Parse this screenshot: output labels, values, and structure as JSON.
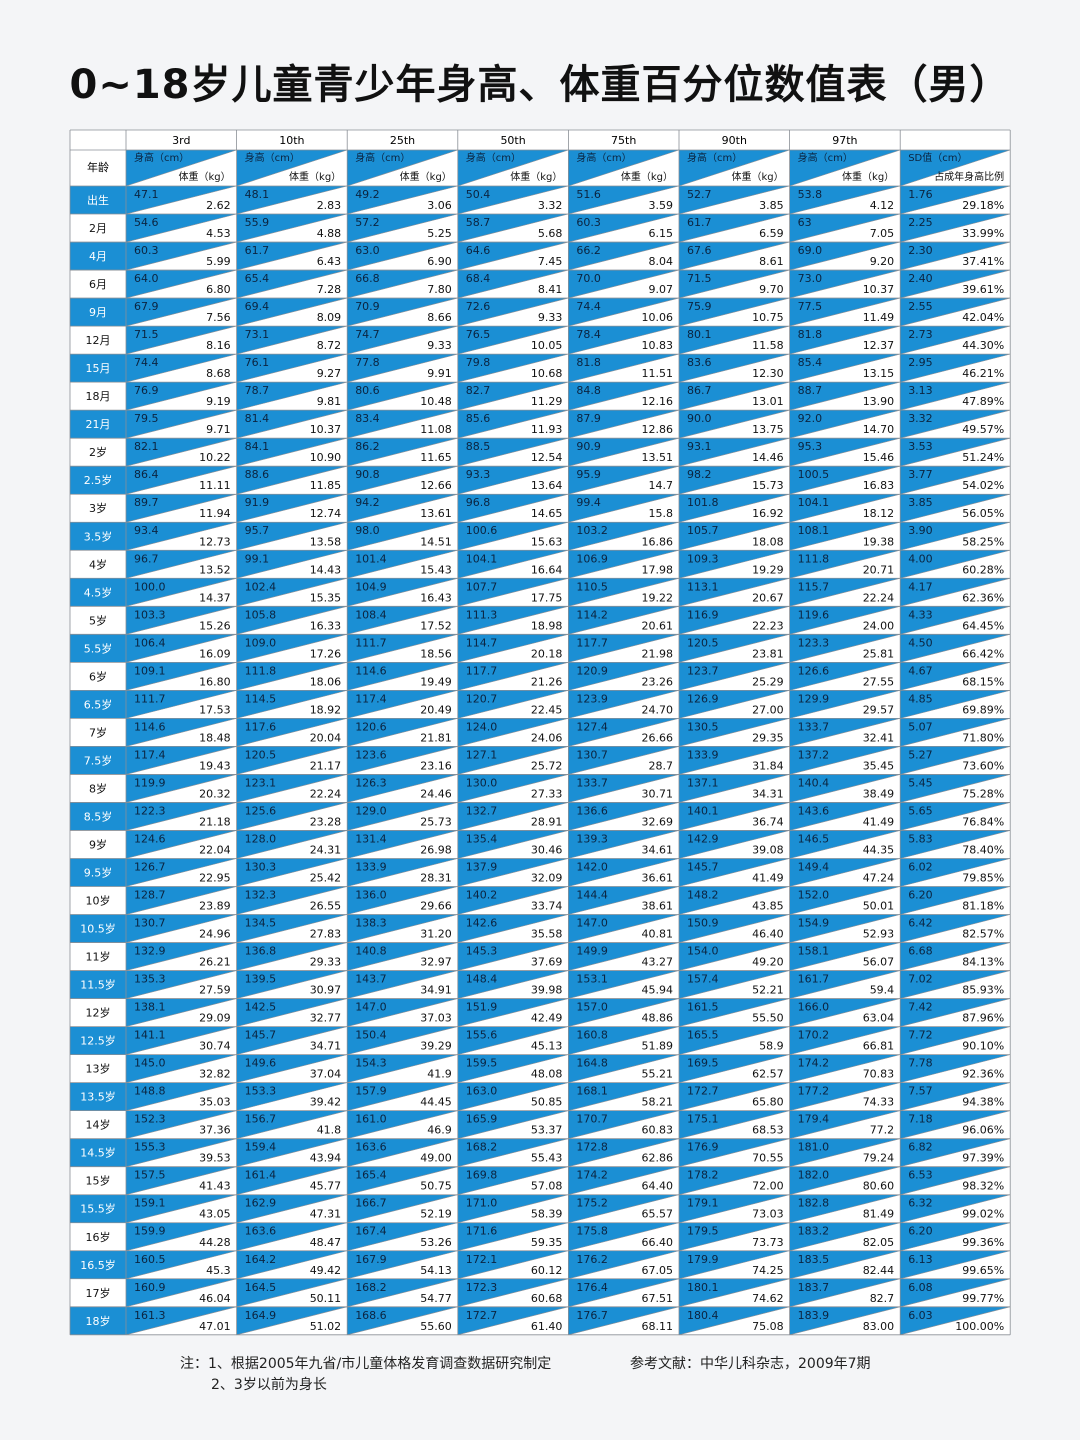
{
  "title": "0~18岁儿童青少年身高、体重百分位数值表（男）",
  "table": {
    "percentiles": [
      "3rd",
      "10th",
      "25th",
      "50th",
      "75th",
      "90th",
      "97th"
    ],
    "age_header": "年龄",
    "height_header": "身高（cm）",
    "weight_header": "体重（kg）",
    "sd_header": "SD值（cm）",
    "ratio_header": "占成年身高比例",
    "rows": [
      [
        "出生",
        "47.1",
        "2.62",
        "48.1",
        "2.83",
        "49.2",
        "3.06",
        "50.4",
        "3.32",
        "51.6",
        "3.59",
        "52.7",
        "3.85",
        "53.8",
        "4.12",
        "1.76",
        "29.18%"
      ],
      [
        "2月",
        "54.6",
        "4.53",
        "55.9",
        "4.88",
        "57.2",
        "5.25",
        "58.7",
        "5.68",
        "60.3",
        "6.15",
        "61.7",
        "6.59",
        "63",
        "7.05",
        "2.25",
        "33.99%"
      ],
      [
        "4月",
        "60.3",
        "5.99",
        "61.7",
        "6.43",
        "63.0",
        "6.90",
        "64.6",
        "7.45",
        "66.2",
        "8.04",
        "67.6",
        "8.61",
        "69.0",
        "9.20",
        "2.30",
        "37.41%"
      ],
      [
        "6月",
        "64.0",
        "6.80",
        "65.4",
        "7.28",
        "66.8",
        "7.80",
        "68.4",
        "8.41",
        "70.0",
        "9.07",
        "71.5",
        "9.70",
        "73.0",
        "10.37",
        "2.40",
        "39.61%"
      ],
      [
        "9月",
        "67.9",
        "7.56",
        "69.4",
        "8.09",
        "70.9",
        "8.66",
        "72.6",
        "9.33",
        "74.4",
        "10.06",
        "75.9",
        "10.75",
        "77.5",
        "11.49",
        "2.55",
        "42.04%"
      ],
      [
        "12月",
        "71.5",
        "8.16",
        "73.1",
        "8.72",
        "74.7",
        "9.33",
        "76.5",
        "10.05",
        "78.4",
        "10.83",
        "80.1",
        "11.58",
        "81.8",
        "12.37",
        "2.73",
        "44.30%"
      ],
      [
        "15月",
        "74.4",
        "8.68",
        "76.1",
        "9.27",
        "77.8",
        "9.91",
        "79.8",
        "10.68",
        "81.8",
        "11.51",
        "83.6",
        "12.30",
        "85.4",
        "13.15",
        "2.95",
        "46.21%"
      ],
      [
        "18月",
        "76.9",
        "9.19",
        "78.7",
        "9.81",
        "80.6",
        "10.48",
        "82.7",
        "11.29",
        "84.8",
        "12.16",
        "86.7",
        "13.01",
        "88.7",
        "13.90",
        "3.13",
        "47.89%"
      ],
      [
        "21月",
        "79.5",
        "9.71",
        "81.4",
        "10.37",
        "83.4",
        "11.08",
        "85.6",
        "11.93",
        "87.9",
        "12.86",
        "90.0",
        "13.75",
        "92.0",
        "14.70",
        "3.32",
        "49.57%"
      ],
      [
        "2岁",
        "82.1",
        "10.22",
        "84.1",
        "10.90",
        "86.2",
        "11.65",
        "88.5",
        "12.54",
        "90.9",
        "13.51",
        "93.1",
        "14.46",
        "95.3",
        "15.46",
        "3.53",
        "51.24%"
      ],
      [
        "2.5岁",
        "86.4",
        "11.11",
        "88.6",
        "11.85",
        "90.8",
        "12.66",
        "93.3",
        "13.64",
        "95.9",
        "14.7",
        "98.2",
        "15.73",
        "100.5",
        "16.83",
        "3.77",
        "54.02%"
      ],
      [
        "3岁",
        "89.7",
        "11.94",
        "91.9",
        "12.74",
        "94.2",
        "13.61",
        "96.8",
        "14.65",
        "99.4",
        "15.8",
        "101.8",
        "16.92",
        "104.1",
        "18.12",
        "3.85",
        "56.05%"
      ],
      [
        "3.5岁",
        "93.4",
        "12.73",
        "95.7",
        "13.58",
        "98.0",
        "14.51",
        "100.6",
        "15.63",
        "103.2",
        "16.86",
        "105.7",
        "18.08",
        "108.1",
        "19.38",
        "3.90",
        "58.25%"
      ],
      [
        "4岁",
        "96.7",
        "13.52",
        "99.1",
        "14.43",
        "101.4",
        "15.43",
        "104.1",
        "16.64",
        "106.9",
        "17.98",
        "109.3",
        "19.29",
        "111.8",
        "20.71",
        "4.00",
        "60.28%"
      ],
      [
        "4.5岁",
        "100.0",
        "14.37",
        "102.4",
        "15.35",
        "104.9",
        "16.43",
        "107.7",
        "17.75",
        "110.5",
        "19.22",
        "113.1",
        "20.67",
        "115.7",
        "22.24",
        "4.17",
        "62.36%"
      ],
      [
        "5岁",
        "103.3",
        "15.26",
        "105.8",
        "16.33",
        "108.4",
        "17.52",
        "111.3",
        "18.98",
        "114.2",
        "20.61",
        "116.9",
        "22.23",
        "119.6",
        "24.00",
        "4.33",
        "64.45%"
      ],
      [
        "5.5岁",
        "106.4",
        "16.09",
        "109.0",
        "17.26",
        "111.7",
        "18.56",
        "114.7",
        "20.18",
        "117.7",
        "21.98",
        "120.5",
        "23.81",
        "123.3",
        "25.81",
        "4.50",
        "66.42%"
      ],
      [
        "6岁",
        "109.1",
        "16.80",
        "111.8",
        "18.06",
        "114.6",
        "19.49",
        "117.7",
        "21.26",
        "120.9",
        "23.26",
        "123.7",
        "25.29",
        "126.6",
        "27.55",
        "4.67",
        "68.15%"
      ],
      [
        "6.5岁",
        "111.7",
        "17.53",
        "114.5",
        "18.92",
        "117.4",
        "20.49",
        "120.7",
        "22.45",
        "123.9",
        "24.70",
        "126.9",
        "27.00",
        "129.9",
        "29.57",
        "4.85",
        "69.89%"
      ],
      [
        "7岁",
        "114.6",
        "18.48",
        "117.6",
        "20.04",
        "120.6",
        "21.81",
        "124.0",
        "24.06",
        "127.4",
        "26.66",
        "130.5",
        "29.35",
        "133.7",
        "32.41",
        "5.07",
        "71.80%"
      ],
      [
        "7.5岁",
        "117.4",
        "19.43",
        "120.5",
        "21.17",
        "123.6",
        "23.16",
        "127.1",
        "25.72",
        "130.7",
        "28.7",
        "133.9",
        "31.84",
        "137.2",
        "35.45",
        "5.27",
        "73.60%"
      ],
      [
        "8岁",
        "119.9",
        "20.32",
        "123.1",
        "22.24",
        "126.3",
        "24.46",
        "130.0",
        "27.33",
        "133.7",
        "30.71",
        "137.1",
        "34.31",
        "140.4",
        "38.49",
        "5.45",
        "75.28%"
      ],
      [
        "8.5岁",
        "122.3",
        "21.18",
        "125.6",
        "23.28",
        "129.0",
        "25.73",
        "132.7",
        "28.91",
        "136.6",
        "32.69",
        "140.1",
        "36.74",
        "143.6",
        "41.49",
        "5.65",
        "76.84%"
      ],
      [
        "9岁",
        "124.6",
        "22.04",
        "128.0",
        "24.31",
        "131.4",
        "26.98",
        "135.4",
        "30.46",
        "139.3",
        "34.61",
        "142.9",
        "39.08",
        "146.5",
        "44.35",
        "5.83",
        "78.40%"
      ],
      [
        "9.5岁",
        "126.7",
        "22.95",
        "130.3",
        "25.42",
        "133.9",
        "28.31",
        "137.9",
        "32.09",
        "142.0",
        "36.61",
        "145.7",
        "41.49",
        "149.4",
        "47.24",
        "6.02",
        "79.85%"
      ],
      [
        "10岁",
        "128.7",
        "23.89",
        "132.3",
        "26.55",
        "136.0",
        "29.66",
        "140.2",
        "33.74",
        "144.4",
        "38.61",
        "148.2",
        "43.85",
        "152.0",
        "50.01",
        "6.20",
        "81.18%"
      ],
      [
        "10.5岁",
        "130.7",
        "24.96",
        "134.5",
        "27.83",
        "138.3",
        "31.20",
        "142.6",
        "35.58",
        "147.0",
        "40.81",
        "150.9",
        "46.40",
        "154.9",
        "52.93",
        "6.42",
        "82.57%"
      ],
      [
        "11岁",
        "132.9",
        "26.21",
        "136.8",
        "29.33",
        "140.8",
        "32.97",
        "145.3",
        "37.69",
        "149.9",
        "43.27",
        "154.0",
        "49.20",
        "158.1",
        "56.07",
        "6.68",
        "84.13%"
      ],
      [
        "11.5岁",
        "135.3",
        "27.59",
        "139.5",
        "30.97",
        "143.7",
        "34.91",
        "148.4",
        "39.98",
        "153.1",
        "45.94",
        "157.4",
        "52.21",
        "161.7",
        "59.4",
        "7.02",
        "85.93%"
      ],
      [
        "12岁",
        "138.1",
        "29.09",
        "142.5",
        "32.77",
        "147.0",
        "37.03",
        "151.9",
        "42.49",
        "157.0",
        "48.86",
        "161.5",
        "55.50",
        "166.0",
        "63.04",
        "7.42",
        "87.96%"
      ],
      [
        "12.5岁",
        "141.1",
        "30.74",
        "145.7",
        "34.71",
        "150.4",
        "39.29",
        "155.6",
        "45.13",
        "160.8",
        "51.89",
        "165.5",
        "58.9",
        "170.2",
        "66.81",
        "7.72",
        "90.10%"
      ],
      [
        "13岁",
        "145.0",
        "32.82",
        "149.6",
        "37.04",
        "154.3",
        "41.9",
        "159.5",
        "48.08",
        "164.8",
        "55.21",
        "169.5",
        "62.57",
        "174.2",
        "70.83",
        "7.78",
        "92.36%"
      ],
      [
        "13.5岁",
        "148.8",
        "35.03",
        "153.3",
        "39.42",
        "157.9",
        "44.45",
        "163.0",
        "50.85",
        "168.1",
        "58.21",
        "172.7",
        "65.80",
        "177.2",
        "74.33",
        "7.57",
        "94.38%"
      ],
      [
        "14岁",
        "152.3",
        "37.36",
        "156.7",
        "41.8",
        "161.0",
        "46.9",
        "165.9",
        "53.37",
        "170.7",
        "60.83",
        "175.1",
        "68.53",
        "179.4",
        "77.2",
        "7.18",
        "96.06%"
      ],
      [
        "14.5岁",
        "155.3",
        "39.53",
        "159.4",
        "43.94",
        "163.6",
        "49.00",
        "168.2",
        "55.43",
        "172.8",
        "62.86",
        "176.9",
        "70.55",
        "181.0",
        "79.24",
        "6.82",
        "97.39%"
      ],
      [
        "15岁",
        "157.5",
        "41.43",
        "161.4",
        "45.77",
        "165.4",
        "50.75",
        "169.8",
        "57.08",
        "174.2",
        "64.40",
        "178.2",
        "72.00",
        "182.0",
        "80.60",
        "6.53",
        "98.32%"
      ],
      [
        "15.5岁",
        "159.1",
        "43.05",
        "162.9",
        "47.31",
        "166.7",
        "52.19",
        "171.0",
        "58.39",
        "175.2",
        "65.57",
        "179.1",
        "73.03",
        "182.8",
        "81.49",
        "6.32",
        "99.02%"
      ],
      [
        "16岁",
        "159.9",
        "44.28",
        "163.6",
        "48.47",
        "167.4",
        "53.26",
        "171.6",
        "59.35",
        "175.8",
        "66.40",
        "179.5",
        "73.73",
        "183.2",
        "82.05",
        "6.20",
        "99.36%"
      ],
      [
        "16.5岁",
        "160.5",
        "45.3",
        "164.2",
        "49.42",
        "167.9",
        "54.13",
        "172.1",
        "60.12",
        "176.2",
        "67.05",
        "179.9",
        "74.25",
        "183.5",
        "82.44",
        "6.13",
        "99.65%"
      ],
      [
        "17岁",
        "160.9",
        "46.04",
        "164.5",
        "50.11",
        "168.2",
        "54.77",
        "172.3",
        "60.68",
        "176.4",
        "67.51",
        "180.1",
        "74.62",
        "183.7",
        "82.7",
        "6.08",
        "99.77%"
      ],
      [
        "18岁",
        "161.3",
        "47.01",
        "164.9",
        "51.02",
        "168.6",
        "55.60",
        "172.7",
        "61.40",
        "176.7",
        "68.11",
        "180.4",
        "75.08",
        "183.9",
        "83.00",
        "6.03",
        "100.00%"
      ]
    ]
  },
  "notes": [
    "注：1、根据2005年九省/市儿童体格发育调查数据研究制定",
    "2、3岁以前为身长"
  ],
  "reference": "参考文献：中华儿科杂志，2009年7期"
}
